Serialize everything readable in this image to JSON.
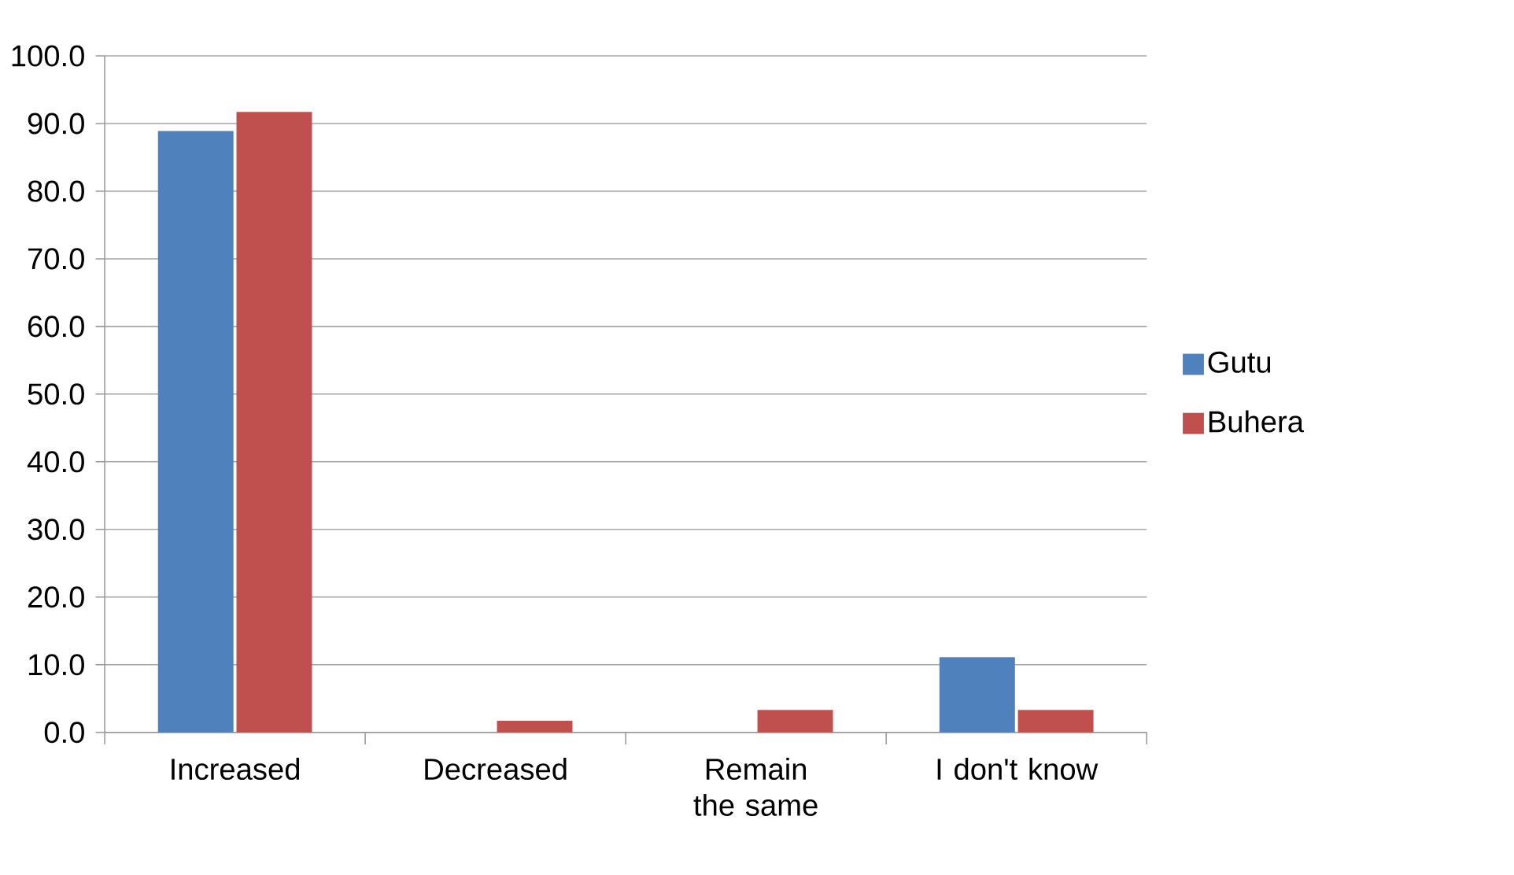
{
  "chart_data": {
    "type": "bar",
    "categories": [
      "Increased",
      "Decreased",
      "Remain the same",
      "I don't know"
    ],
    "series": [
      {
        "name": "Gutu",
        "color": "#4f81bd",
        "values": [
          88.9,
          0,
          0,
          11.1
        ]
      },
      {
        "name": "Buhera",
        "color": "#c0504d",
        "values": [
          91.7,
          1.7,
          3.3,
          3.3
        ]
      }
    ],
    "ylim": [
      0,
      100
    ],
    "yticks": [
      {
        "value": 0,
        "label": "0.0"
      },
      {
        "value": 10,
        "label": "10.0"
      },
      {
        "value": 20,
        "label": "20.0"
      },
      {
        "value": 30,
        "label": "30.0"
      },
      {
        "value": 40,
        "label": "40.0"
      },
      {
        "value": 50,
        "label": "50.0"
      },
      {
        "value": 60,
        "label": "60.0"
      },
      {
        "value": 70,
        "label": "70.0"
      },
      {
        "value": 80,
        "label": "80.0"
      },
      {
        "value": 90,
        "label": "90.0"
      },
      {
        "value": 100,
        "label": "100.0"
      }
    ],
    "grid": "y",
    "legend": "right"
  }
}
